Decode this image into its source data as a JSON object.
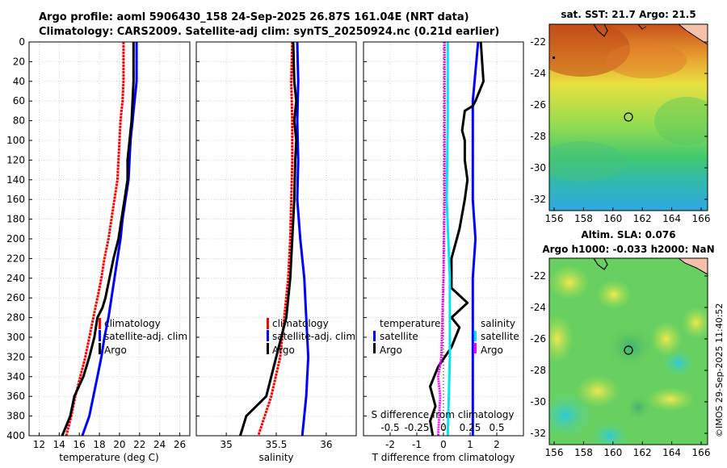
{
  "header": {
    "line1": "Argo profile: aoml 5906430_158 24-Sep-2025 26.87S 161.04E (NRT data)",
    "line2": "Climatology: CARS2009. Satellite-adj clim: synTS_20250924.nc (0.21d earlier)"
  },
  "colors": {
    "red": "#ff0000",
    "blue": "#0000ff",
    "black": "#000000",
    "magenta": "#ff00ff",
    "cyan": "#00e5ee"
  },
  "chart_data": [
    {
      "id": "temperature",
      "type": "line",
      "xlabel": "temperature (deg C)",
      "ylabel": "",
      "xlim": [
        11,
        27
      ],
      "ylim": [
        400,
        0
      ],
      "xticks": [
        12,
        14,
        16,
        18,
        20,
        22,
        24,
        26
      ],
      "yticks": [
        0,
        20,
        40,
        60,
        80,
        100,
        120,
        140,
        160,
        180,
        200,
        220,
        240,
        260,
        280,
        300,
        320,
        340,
        360,
        380,
        400
      ],
      "legend": [
        "climatology",
        "satellite-adj. clim",
        "Argo"
      ],
      "series": [
        {
          "name": "climatology",
          "color": "red",
          "points": [
            [
              20.4,
              0
            ],
            [
              20.4,
              40
            ],
            [
              20.3,
              60
            ],
            [
              20.2,
              70
            ],
            [
              20.1,
              80
            ],
            [
              20,
              100
            ],
            [
              19.8,
              140
            ],
            [
              19.5,
              160
            ],
            [
              19.2,
              180
            ],
            [
              18.9,
              200
            ],
            [
              18.5,
              220
            ],
            [
              18.2,
              240
            ],
            [
              17.8,
              260
            ],
            [
              17.4,
              280
            ],
            [
              17,
              300
            ],
            [
              16.6,
              320
            ],
            [
              16.1,
              340
            ],
            [
              15.6,
              360
            ],
            [
              15.2,
              380
            ],
            [
              14.7,
              400
            ]
          ]
        },
        {
          "name": "satellite-adj. clim",
          "color": "blue",
          "points": [
            [
              21.7,
              0
            ],
            [
              21.7,
              40
            ],
            [
              21.5,
              60
            ],
            [
              21.3,
              80
            ],
            [
              21.1,
              100
            ],
            [
              20.9,
              140
            ],
            [
              20.6,
              160
            ],
            [
              20.3,
              180
            ],
            [
              20.1,
              200
            ],
            [
              19.8,
              220
            ],
            [
              19.5,
              240
            ],
            [
              19.2,
              260
            ],
            [
              18.9,
              280
            ],
            [
              18.5,
              300
            ],
            [
              18.2,
              320
            ],
            [
              17.8,
              340
            ],
            [
              17.4,
              360
            ],
            [
              17,
              380
            ],
            [
              16.3,
              400
            ]
          ]
        },
        {
          "name": "Argo",
          "color": "black",
          "points": [
            [
              21.4,
              0
            ],
            [
              21.4,
              40
            ],
            [
              21.3,
              60
            ],
            [
              21.2,
              80
            ],
            [
              21,
              100
            ],
            [
              20.8,
              120
            ],
            [
              20.8,
              140
            ],
            [
              20.5,
              160
            ],
            [
              20.2,
              180
            ],
            [
              19.9,
              200
            ],
            [
              19.4,
              220
            ],
            [
              19,
              240
            ],
            [
              18.6,
              260
            ],
            [
              18.3,
              270
            ],
            [
              17.8,
              280
            ],
            [
              17.5,
              300
            ],
            [
              17,
              320
            ],
            [
              16.4,
              340
            ],
            [
              15.5,
              360
            ],
            [
              15.1,
              380
            ],
            [
              14.3,
              400
            ]
          ]
        }
      ]
    },
    {
      "id": "salinity",
      "type": "line",
      "xlabel": "salinity",
      "xlim": [
        34.7,
        36.3
      ],
      "ylim": [
        400,
        0
      ],
      "xticks": [
        35,
        35.5,
        36
      ],
      "legend": [
        "climatology",
        "satellite-adj. clim",
        "Argo"
      ],
      "series": [
        {
          "name": "climatology",
          "color": "red",
          "points": [
            [
              35.66,
              0
            ],
            [
              35.65,
              40
            ],
            [
              35.66,
              80
            ],
            [
              35.66,
              120
            ],
            [
              35.65,
              160
            ],
            [
              35.64,
              200
            ],
            [
              35.62,
              240
            ],
            [
              35.58,
              280
            ],
            [
              35.54,
              320
            ],
            [
              35.45,
              360
            ],
            [
              35.32,
              400
            ]
          ]
        },
        {
          "name": "satellite-adj. clim",
          "color": "blue",
          "points": [
            [
              35.71,
              0
            ],
            [
              35.72,
              40
            ],
            [
              35.71,
              80
            ],
            [
              35.72,
              120
            ],
            [
              35.71,
              160
            ],
            [
              35.74,
              200
            ],
            [
              35.78,
              240
            ],
            [
              35.8,
              280
            ],
            [
              35.82,
              320
            ],
            [
              35.8,
              360
            ],
            [
              35.76,
              400
            ]
          ]
        },
        {
          "name": "Argo",
          "color": "black",
          "points": [
            [
              35.67,
              0
            ],
            [
              35.68,
              40
            ],
            [
              35.7,
              60
            ],
            [
              35.68,
              80
            ],
            [
              35.7,
              100
            ],
            [
              35.69,
              120
            ],
            [
              35.68,
              160
            ],
            [
              35.66,
              200
            ],
            [
              35.64,
              240
            ],
            [
              35.6,
              280
            ],
            [
              35.5,
              320
            ],
            [
              35.4,
              360
            ],
            [
              35.2,
              380
            ],
            [
              35.14,
              400
            ]
          ]
        }
      ]
    },
    {
      "id": "difference",
      "type": "line",
      "xlabel": "T difference from climatology",
      "top_label": "S difference from climatology",
      "xlim": [
        -3,
        3
      ],
      "ylim": [
        400,
        0
      ],
      "xticks": [
        -2,
        -1,
        0,
        1,
        2
      ],
      "top_xticks": [
        "-0.5",
        "-0.25",
        "0",
        "0.25",
        "0.5"
      ],
      "legend_left_title": "temperature",
      "legend_left": [
        "satellite",
        "Argo"
      ],
      "legend_right_title": "salinity",
      "legend_right": [
        "satellite",
        "Argo"
      ],
      "series": [
        {
          "name": "T satellite",
          "color": "blue",
          "points": [
            [
              1.3,
              0
            ],
            [
              1.2,
              30
            ],
            [
              1.1,
              60
            ],
            [
              1.1,
              100
            ],
            [
              1.1,
              140
            ],
            [
              1.1,
              160
            ],
            [
              1.2,
              200
            ],
            [
              1.1,
              240
            ],
            [
              1.1,
              280
            ],
            [
              1.1,
              320
            ],
            [
              1.1,
              360
            ],
            [
              1.1,
              400
            ]
          ]
        },
        {
          "name": "T Argo",
          "color": "black",
          "points": [
            [
              1.4,
              0
            ],
            [
              1.5,
              40
            ],
            [
              1.2,
              60
            ],
            [
              1.1,
              65
            ],
            [
              0.8,
              70
            ],
            [
              0.7,
              90
            ],
            [
              0.8,
              100
            ],
            [
              0.8,
              120
            ],
            [
              0.9,
              140
            ],
            [
              0.8,
              160
            ],
            [
              0.6,
              190
            ],
            [
              0.3,
              220
            ],
            [
              0.3,
              250
            ],
            [
              0.9,
              265
            ],
            [
              0.3,
              280
            ],
            [
              0.6,
              290
            ],
            [
              0.3,
              310
            ],
            [
              -0.2,
              330
            ],
            [
              -0.5,
              350
            ],
            [
              -0.3,
              370
            ],
            [
              -0.5,
              385
            ],
            [
              -0.4,
              400
            ]
          ]
        },
        {
          "name": "S satellite",
          "color": "cyan",
          "points": [
            [
              0.04,
              0
            ],
            [
              0.04,
              80
            ],
            [
              0.03,
              160
            ],
            [
              0.06,
              240
            ],
            [
              0.06,
              320
            ],
            [
              0.04,
              400
            ]
          ]
        },
        {
          "name": "S Argo",
          "color": "magenta",
          "points": [
            [
              0.01,
              0
            ],
            [
              0.01,
              80
            ],
            [
              0.01,
              160
            ],
            [
              0,
              240
            ],
            [
              -0.01,
              280
            ],
            [
              -0.02,
              320
            ],
            [
              -0.05,
              340
            ],
            [
              -0.03,
              360
            ],
            [
              -0.04,
              380
            ],
            [
              -0.05,
              400
            ]
          ]
        }
      ]
    }
  ],
  "maps": {
    "sst": {
      "title": "sat. SST: 21.7 Argo: 21.5",
      "xticks": [
        "156",
        "158",
        "160",
        "162",
        "164",
        "166"
      ],
      "yticks": [
        "-22",
        "-24",
        "-26",
        "-28",
        "-30",
        "-32"
      ]
    },
    "sla": {
      "title1": "Altim. SLA: 0.076",
      "title2": "Argo h1000: -0.033 h2000: NaN",
      "xticks": [
        "156",
        "158",
        "160",
        "162",
        "164",
        "166"
      ],
      "yticks": [
        "-22",
        "-24",
        "-26",
        "-28",
        "-30",
        "-32"
      ]
    }
  },
  "watermark": "©IMOS 29-Sep-2025 11:40:52"
}
